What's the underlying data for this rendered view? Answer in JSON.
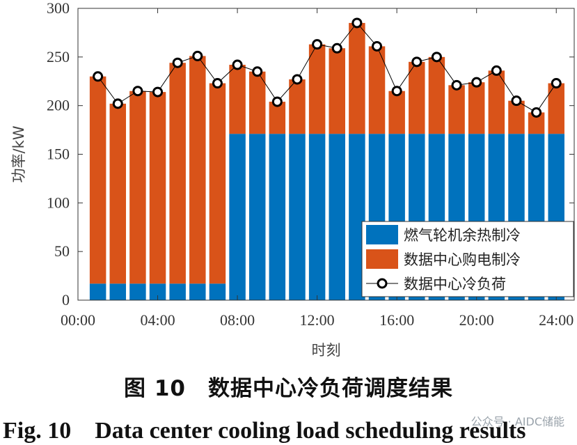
{
  "chart_data": {
    "type": "bar",
    "stacked": true,
    "ylabel": "功率/kW",
    "xlabel": "时刻",
    "ylim": [
      0,
      300
    ],
    "yticks": [
      0,
      50,
      100,
      150,
      200,
      250,
      300
    ],
    "xlim": [
      0,
      24.9
    ],
    "xticks": [
      0,
      4,
      8,
      12,
      16,
      20,
      24
    ],
    "xtick_labels": [
      "00:00",
      "04:00",
      "08:00",
      "12:00",
      "16:00",
      "20:00",
      "24:00"
    ],
    "hours": [
      1,
      2,
      3,
      4,
      5,
      6,
      7,
      8,
      9,
      10,
      11,
      12,
      13,
      14,
      15,
      16,
      17,
      18,
      19,
      20,
      21,
      22,
      23,
      24
    ],
    "series": [
      {
        "name": "燃气轮机余热制冷",
        "color": "#0072BD",
        "values": [
          17,
          17,
          17,
          17,
          17,
          17,
          17,
          171,
          171,
          171,
          171,
          171,
          171,
          171,
          171,
          171,
          171,
          171,
          171,
          171,
          171,
          171,
          171,
          171
        ]
      },
      {
        "name": "数据中心购电制冷",
        "color": "#D95319",
        "values": [
          213,
          185,
          198,
          197,
          227,
          234,
          206,
          71,
          64,
          33,
          56,
          92,
          88,
          114,
          90,
          44,
          74,
          79,
          50,
          53,
          65,
          34,
          22,
          52
        ]
      }
    ],
    "line": {
      "name": "数据中心冷负荷",
      "color": "#000000",
      "values": [
        230,
        202,
        215,
        214,
        244,
        251,
        223,
        242,
        235,
        204,
        227,
        263,
        259,
        285,
        261,
        215,
        245,
        250,
        221,
        224,
        236,
        205,
        193,
        223
      ]
    },
    "legend_position": "bottom-right"
  },
  "caption_cn": "图 10　数据中心冷负荷调度结果",
  "caption_en": "Fig. 10　Data center cooling load scheduling results",
  "watermark": "公众号 · AIDC储能"
}
